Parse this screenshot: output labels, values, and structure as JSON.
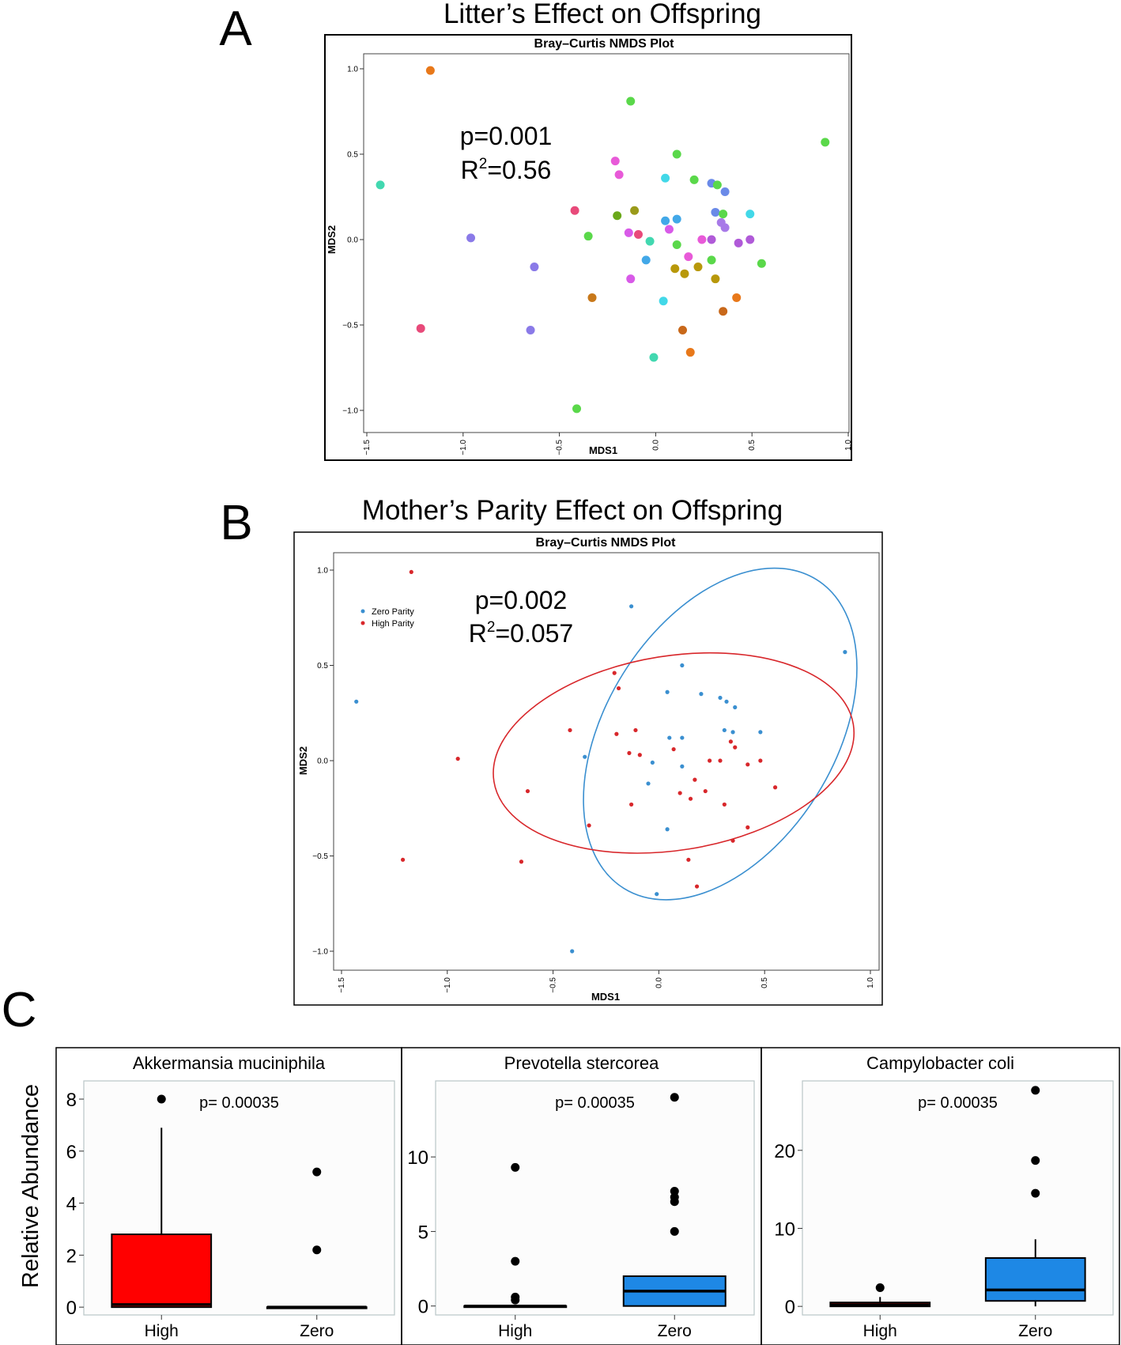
{
  "panels": {
    "A": {
      "letter": "A",
      "heading": "Litter’s Effect on Offspring",
      "plot_title": "Bray–Curtis NMDS Plot",
      "annotation_p": "p=0.001",
      "annotation_r2_prefix": "R",
      "annotation_r2_sup": "2",
      "annotation_r2_value": "=0.56"
    },
    "B": {
      "letter": "B",
      "heading": "Mother’s Parity Effect on Offspring",
      "plot_title": "Bray–Curtis NMDS Plot",
      "annotation_p": "p=0.002",
      "annotation_r2_prefix": "R",
      "annotation_r2_sup": "2",
      "annotation_r2_value": "=0.057"
    },
    "C": {
      "letter": "C",
      "ylabel": "Relative Abundance"
    }
  },
  "chart_data": [
    {
      "type": "scatter",
      "title": "Bray–Curtis NMDS Plot",
      "xlabel": "MDS1",
      "ylabel": "MDS2",
      "xlim": [
        -1.5,
        1.0
      ],
      "ylim": [
        -1.0,
        1.0
      ],
      "xticks": [
        "−1.5",
        "−1.0",
        "−0.5",
        "0.0",
        "0.5",
        "1.0"
      ],
      "yticks": [
        "−1.0",
        "−0.5",
        "0.0",
        "0.5",
        "1.0"
      ],
      "xtick_values": [
        -1.5,
        -1.0,
        -0.5,
        0.0,
        0.5,
        1.0
      ],
      "ytick_values": [
        -1.0,
        -0.5,
        0.0,
        0.5,
        1.0
      ],
      "points": [
        {
          "x": -1.17,
          "y": 0.99,
          "color": "#e8781a"
        },
        {
          "x": -0.13,
          "y": 0.81,
          "color": "#5ad84a"
        },
        {
          "x": 0.88,
          "y": 0.57,
          "color": "#5ad84a"
        },
        {
          "x": 0.11,
          "y": 0.5,
          "color": "#5ad84a"
        },
        {
          "x": -0.21,
          "y": 0.46,
          "color": "#e85ad8"
        },
        {
          "x": -0.19,
          "y": 0.38,
          "color": "#e85ad8"
        },
        {
          "x": 0.05,
          "y": 0.36,
          "color": "#42d8e8"
        },
        {
          "x": 0.2,
          "y": 0.35,
          "color": "#5ad84a"
        },
        {
          "x": 0.29,
          "y": 0.33,
          "color": "#6a8ae8"
        },
        {
          "x": 0.32,
          "y": 0.32,
          "color": "#5ad84a"
        },
        {
          "x": 0.36,
          "y": 0.28,
          "color": "#6a8ae8"
        },
        {
          "x": -1.43,
          "y": 0.32,
          "color": "#42d8b0"
        },
        {
          "x": -0.42,
          "y": 0.17,
          "color": "#e84a7a"
        },
        {
          "x": -0.11,
          "y": 0.17,
          "color": "#9a9a1a"
        },
        {
          "x": -0.2,
          "y": 0.14,
          "color": "#6aa81a"
        },
        {
          "x": 0.31,
          "y": 0.16,
          "color": "#6a8ae8"
        },
        {
          "x": 0.35,
          "y": 0.15,
          "color": "#5ad84a"
        },
        {
          "x": 0.49,
          "y": 0.15,
          "color": "#42d8e8"
        },
        {
          "x": 0.05,
          "y": 0.11,
          "color": "#42a8e8"
        },
        {
          "x": 0.11,
          "y": 0.12,
          "color": "#42a8e8"
        },
        {
          "x": 0.34,
          "y": 0.1,
          "color": "#a87ae8"
        },
        {
          "x": 0.36,
          "y": 0.07,
          "color": "#a87ae8"
        },
        {
          "x": 0.07,
          "y": 0.06,
          "color": "#d85ae8"
        },
        {
          "x": -0.14,
          "y": 0.04,
          "color": "#d85ae8"
        },
        {
          "x": -0.09,
          "y": 0.03,
          "color": "#e84a7a"
        },
        {
          "x": -0.35,
          "y": 0.02,
          "color": "#5ad84a"
        },
        {
          "x": -0.03,
          "y": -0.01,
          "color": "#42d8b0"
        },
        {
          "x": 0.24,
          "y": 0.0,
          "color": "#e85ad8"
        },
        {
          "x": 0.29,
          "y": 0.0,
          "color": "#b05ad8"
        },
        {
          "x": 0.43,
          "y": -0.02,
          "color": "#b05ad8"
        },
        {
          "x": 0.49,
          "y": 0.0,
          "color": "#b05ad8"
        },
        {
          "x": 0.11,
          "y": -0.03,
          "color": "#5ad84a"
        },
        {
          "x": -0.96,
          "y": 0.01,
          "color": "#8a7ae8"
        },
        {
          "x": 0.17,
          "y": -0.1,
          "color": "#e85ad8"
        },
        {
          "x": -0.05,
          "y": -0.12,
          "color": "#42a8e8"
        },
        {
          "x": -0.63,
          "y": -0.16,
          "color": "#8a7ae8"
        },
        {
          "x": 0.29,
          "y": -0.12,
          "color": "#5ad84a"
        },
        {
          "x": 0.55,
          "y": -0.14,
          "color": "#5ad84a"
        },
        {
          "x": 0.1,
          "y": -0.17,
          "color": "#b8980a"
        },
        {
          "x": 0.15,
          "y": -0.2,
          "color": "#b8980a"
        },
        {
          "x": 0.22,
          "y": -0.16,
          "color": "#b8980a"
        },
        {
          "x": 0.31,
          "y": -0.23,
          "color": "#b8980a"
        },
        {
          "x": -0.13,
          "y": -0.23,
          "color": "#d85ae8"
        },
        {
          "x": -0.33,
          "y": -0.34,
          "color": "#c8781a"
        },
        {
          "x": 0.04,
          "y": -0.36,
          "color": "#42d8e8"
        },
        {
          "x": 0.42,
          "y": -0.34,
          "color": "#e8781a"
        },
        {
          "x": 0.35,
          "y": -0.42,
          "color": "#c8681a"
        },
        {
          "x": -1.22,
          "y": -0.52,
          "color": "#e84a7a"
        },
        {
          "x": -0.65,
          "y": -0.53,
          "color": "#8a7ae8"
        },
        {
          "x": 0.14,
          "y": -0.53,
          "color": "#c8681a"
        },
        {
          "x": 0.18,
          "y": -0.66,
          "color": "#e8781a"
        },
        {
          "x": -0.01,
          "y": -0.69,
          "color": "#42d8b0"
        },
        {
          "x": -0.41,
          "y": -0.99,
          "color": "#5ad84a"
        }
      ]
    },
    {
      "type": "scatter",
      "title": "Bray–Curtis NMDS Plot",
      "xlabel": "MDS1",
      "ylabel": "MDS2",
      "xlim": [
        -1.5,
        1.0
      ],
      "ylim": [
        -1.0,
        1.0
      ],
      "xticks": [
        "−1.5",
        "−1.0",
        "−0.5",
        "0.0",
        "0.5",
        "1.0"
      ],
      "yticks": [
        "−1.0",
        "−0.5",
        "0.0",
        "0.5",
        "1.0"
      ],
      "xtick_values": [
        -1.5,
        -1.0,
        -0.5,
        0.0,
        0.5,
        1.0
      ],
      "ytick_values": [
        -1.0,
        -0.5,
        0.0,
        0.5,
        1.0
      ],
      "legend_position": "top-left",
      "series": [
        {
          "name": "Zero Parity",
          "color": "#3a8fd0",
          "points": [
            [
              -1.43,
              0.31
            ],
            [
              -0.13,
              0.81
            ],
            [
              0.88,
              0.57
            ],
            [
              0.11,
              0.5
            ],
            [
              0.04,
              0.36
            ],
            [
              0.2,
              0.35
            ],
            [
              0.29,
              0.33
            ],
            [
              0.32,
              0.31
            ],
            [
              0.36,
              0.28
            ],
            [
              0.05,
              0.12
            ],
            [
              0.11,
              0.12
            ],
            [
              0.31,
              0.16
            ],
            [
              0.35,
              0.15
            ],
            [
              0.48,
              0.15
            ],
            [
              -0.35,
              0.02
            ],
            [
              -0.03,
              -0.01
            ],
            [
              0.11,
              -0.03
            ],
            [
              -0.05,
              -0.12
            ],
            [
              0.04,
              -0.36
            ],
            [
              -0.01,
              -0.7
            ],
            [
              -0.41,
              -1.0
            ]
          ]
        },
        {
          "name": "High Parity",
          "color": "#d8272b",
          "points": [
            [
              -1.17,
              0.99
            ],
            [
              -0.21,
              0.46
            ],
            [
              -0.19,
              0.38
            ],
            [
              -0.42,
              0.16
            ],
            [
              -0.11,
              0.16
            ],
            [
              -0.2,
              0.14
            ],
            [
              0.34,
              0.1
            ],
            [
              0.36,
              0.07
            ],
            [
              0.07,
              0.06
            ],
            [
              -0.14,
              0.04
            ],
            [
              -0.09,
              0.03
            ],
            [
              -0.95,
              0.01
            ],
            [
              0.24,
              0.0
            ],
            [
              0.29,
              0.0
            ],
            [
              0.42,
              -0.02
            ],
            [
              0.48,
              0.0
            ],
            [
              0.17,
              -0.1
            ],
            [
              0.55,
              -0.14
            ],
            [
              -0.62,
              -0.16
            ],
            [
              0.1,
              -0.17
            ],
            [
              0.15,
              -0.2
            ],
            [
              0.22,
              -0.16
            ],
            [
              0.31,
              -0.23
            ],
            [
              -0.13,
              -0.23
            ],
            [
              -0.33,
              -0.34
            ],
            [
              0.42,
              -0.35
            ],
            [
              0.35,
              -0.42
            ],
            [
              -1.21,
              -0.52
            ],
            [
              -0.65,
              -0.53
            ],
            [
              0.14,
              -0.52
            ],
            [
              0.18,
              -0.66
            ]
          ]
        }
      ],
      "ellipses": [
        {
          "series": "Zero Parity",
          "cx": 0.29,
          "cy": 0.14,
          "rx": 0.86,
          "ry": 0.6,
          "rotation_deg": -58
        },
        {
          "series": "High Parity",
          "cx": 0.07,
          "cy": 0.04,
          "rx": 0.86,
          "ry": 0.51,
          "rotation_deg": -9
        }
      ]
    },
    {
      "type": "box",
      "title": "Akkermansia muciniphila",
      "annotation": "p= 0.00035",
      "categories": [
        "High",
        "Zero"
      ],
      "ylabel": "Relative Abundance",
      "ylim": [
        -0.3,
        8.7
      ],
      "yticks": [
        0,
        2,
        4,
        6,
        8
      ],
      "boxes": [
        {
          "category": "High",
          "color": "#ff0000",
          "q1": 0.0,
          "median": 0.1,
          "q3": 2.8,
          "whisker_low": 0.0,
          "whisker_high": 6.9,
          "outliers": [
            8.0
          ]
        },
        {
          "category": "Zero",
          "color": "#1e88e5",
          "q1": 0.0,
          "median": 0.0,
          "q3": 0.0,
          "whisker_low": 0.0,
          "whisker_high": 0.0,
          "outliers": [
            5.2,
            2.2
          ]
        }
      ]
    },
    {
      "type": "box",
      "title": "Prevotella stercorea",
      "annotation": "p= 0.00035",
      "categories": [
        "High",
        "Zero"
      ],
      "ylim": [
        -0.6,
        15.1
      ],
      "yticks": [
        0,
        5,
        10
      ],
      "boxes": [
        {
          "category": "High",
          "color": "#ff0000",
          "q1": 0.0,
          "median": 0.0,
          "q3": 0.0,
          "whisker_low": 0.0,
          "whisker_high": 0.0,
          "outliers": [
            9.3,
            3.0,
            0.6,
            0.4
          ]
        },
        {
          "category": "Zero",
          "color": "#1e88e5",
          "q1": 0.0,
          "median": 1.0,
          "q3": 2.0,
          "whisker_low": 0.0,
          "whisker_high": 2.0,
          "outliers": [
            14.0,
            7.7,
            7.3,
            7.0,
            5.0
          ]
        }
      ]
    },
    {
      "type": "box",
      "title": "Campylobacter coli",
      "annotation": "p= 0.00035",
      "categories": [
        "High",
        "Zero"
      ],
      "ylim": [
        -1.1,
        28.9
      ],
      "yticks": [
        0,
        10,
        20
      ],
      "boxes": [
        {
          "category": "High",
          "color": "#ff0000",
          "q1": 0.0,
          "median": 0.2,
          "q3": 0.5,
          "whisker_low": 0.0,
          "whisker_high": 1.2,
          "outliers": [
            2.4
          ]
        },
        {
          "category": "Zero",
          "color": "#1e88e5",
          "q1": 0.7,
          "median": 2.1,
          "q3": 6.2,
          "whisker_low": 0.0,
          "whisker_high": 8.6,
          "outliers": [
            27.7,
            18.7,
            14.5
          ]
        }
      ]
    }
  ]
}
